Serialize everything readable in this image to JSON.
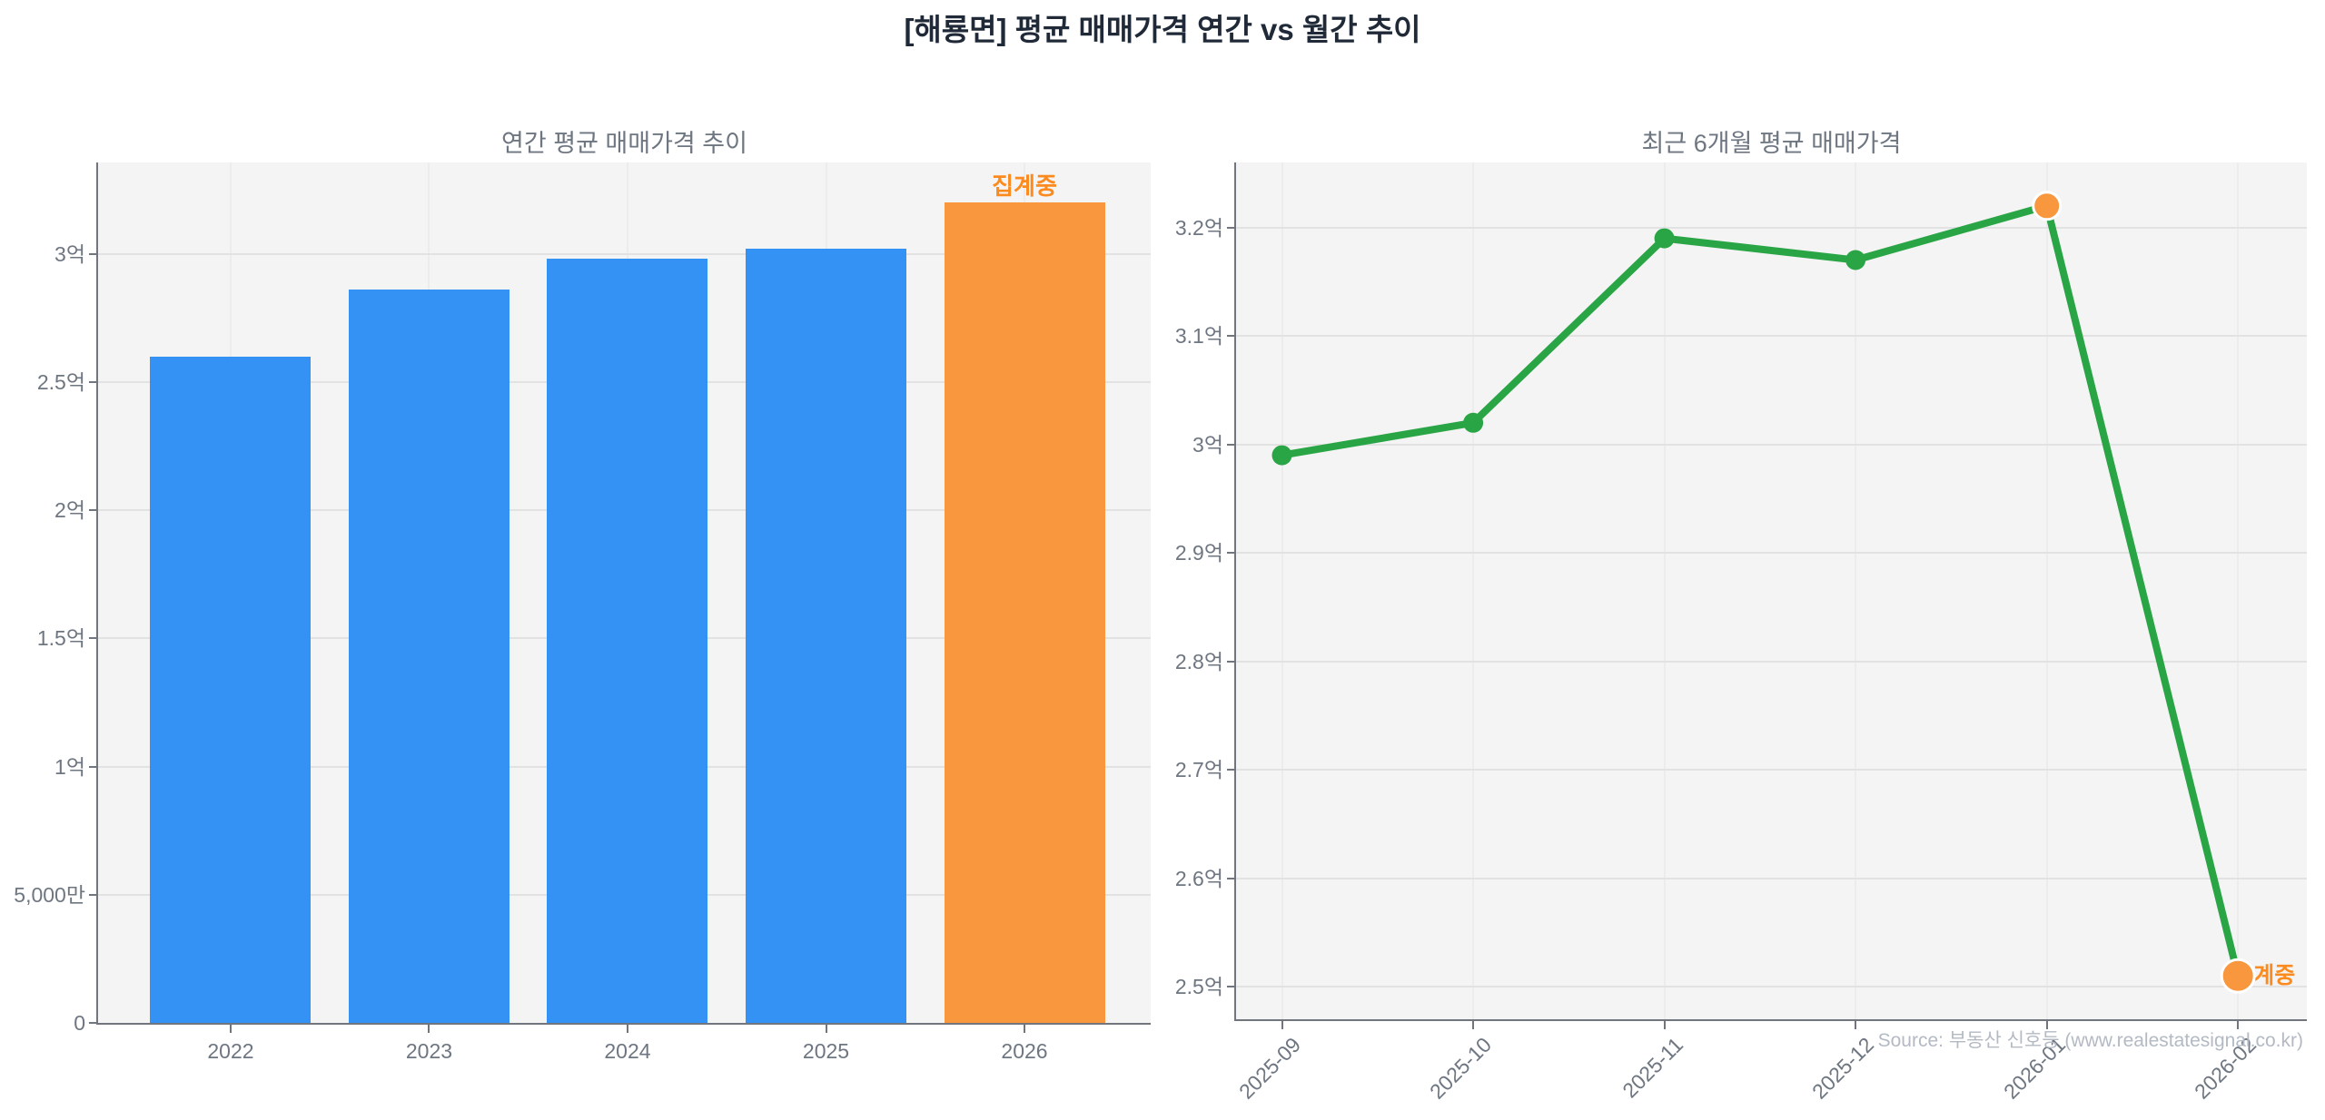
{
  "page": {
    "title": "[해룡면] 평균 매매가격 연간 vs 월간 추이",
    "source": "Source: 부동산 신호등 (www.realestatesignal.co.kr)"
  },
  "colors": {
    "bar_blue": "#3492f5",
    "bar_orange": "#f8973d",
    "line_green": "#2aa546",
    "marker_orange": "#f8973d",
    "marker_edge": "#ffffff",
    "annotation_orange": "#fb8b1f",
    "plot_bg": "#f4f4f4",
    "grid_h": "#e2e2e2",
    "grid_v": "#ececec",
    "axis": "#70757e",
    "tick_label": "#6e7681",
    "subtitle": "#6e7681",
    "title_text": "#1f2937",
    "source_text": "#b3bac4"
  },
  "chart_data": [
    {
      "type": "bar",
      "title": "연간 평균 매매가격 추이",
      "unit": "억",
      "categories": [
        "2022",
        "2023",
        "2024",
        "2025",
        "2026"
      ],
      "values": [
        2.6,
        2.86,
        2.98,
        3.02,
        3.2
      ],
      "bar_colors": [
        "blue",
        "blue",
        "blue",
        "blue",
        "orange"
      ],
      "annotation": {
        "text": "집계중",
        "category": "2026"
      },
      "ylim": [
        0,
        3.357
      ],
      "yticks": [
        {
          "value": 0,
          "label": "0"
        },
        {
          "value": 0.5,
          "label": "5,000만"
        },
        {
          "value": 1,
          "label": "1억"
        },
        {
          "value": 1.5,
          "label": "1.5억"
        },
        {
          "value": 2,
          "label": "2억"
        },
        {
          "value": 2.5,
          "label": "2.5억"
        },
        {
          "value": 3,
          "label": "3억"
        }
      ],
      "grid": true,
      "legend": false
    },
    {
      "type": "line",
      "title": "최근 6개월 평균 매매가격",
      "unit": "억",
      "x": [
        "2025-09",
        "2025-10",
        "2025-11",
        "2025-12",
        "2026-01",
        "2026-02"
      ],
      "values": [
        2.99,
        3.02,
        3.19,
        3.17,
        3.22,
        2.51
      ],
      "highlight_last_n": 2,
      "annotation": {
        "text": "집계중",
        "x": "2026-02"
      },
      "ylim": [
        2.47,
        3.26
      ],
      "yticks": [
        {
          "value": 2.5,
          "label": "2.5억"
        },
        {
          "value": 2.6,
          "label": "2.6억"
        },
        {
          "value": 2.7,
          "label": "2.7억"
        },
        {
          "value": 2.8,
          "label": "2.8억"
        },
        {
          "value": 2.9,
          "label": "2.9억"
        },
        {
          "value": 3.0,
          "label": "3억"
        },
        {
          "value": 3.1,
          "label": "3.1억"
        },
        {
          "value": 3.2,
          "label": "3.2억"
        }
      ],
      "grid": true,
      "legend": false
    }
  ]
}
